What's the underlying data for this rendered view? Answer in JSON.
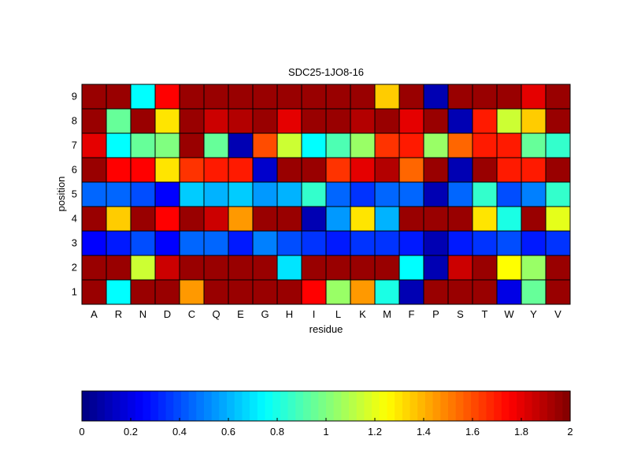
{
  "chart_data": {
    "type": "heatmap",
    "title": "SDC25-1JO8-16",
    "xlabel": "residue",
    "ylabel": "position",
    "x_categories": [
      "A",
      "R",
      "N",
      "D",
      "C",
      "Q",
      "E",
      "G",
      "H",
      "I",
      "L",
      "K",
      "M",
      "F",
      "P",
      "S",
      "T",
      "W",
      "Y",
      "V"
    ],
    "y_categories": [
      "1",
      "2",
      "3",
      "4",
      "5",
      "6",
      "7",
      "8",
      "9"
    ],
    "values": [
      [
        1.95,
        0.75,
        1.95,
        1.95,
        1.45,
        1.95,
        1.95,
        1.95,
        1.95,
        1.75,
        1.05,
        1.45,
        0.8,
        0.1,
        1.95,
        1.95,
        1.95,
        0.2,
        0.95,
        1.95
      ],
      [
        1.95,
        1.95,
        1.15,
        1.85,
        1.95,
        1.95,
        1.95,
        1.95,
        0.7,
        1.95,
        1.95,
        1.95,
        1.95,
        0.75,
        0.1,
        1.85,
        1.95,
        1.25,
        1.05,
        1.95
      ],
      [
        0.25,
        0.3,
        0.4,
        0.25,
        0.45,
        0.45,
        0.3,
        0.5,
        0.4,
        0.35,
        0.3,
        0.35,
        0.35,
        0.3,
        0.1,
        0.3,
        0.35,
        0.4,
        0.3,
        0.35
      ],
      [
        1.95,
        1.35,
        1.95,
        1.75,
        1.95,
        1.85,
        1.45,
        1.95,
        1.95,
        0.1,
        0.55,
        1.3,
        0.6,
        1.95,
        1.95,
        1.95,
        1.3,
        0.8,
        1.95,
        1.2
      ],
      [
        0.45,
        0.45,
        0.4,
        0.25,
        0.65,
        0.6,
        0.65,
        0.55,
        0.6,
        0.85,
        0.45,
        0.35,
        0.45,
        0.45,
        0.1,
        0.45,
        0.85,
        0.4,
        0.5,
        0.85
      ],
      [
        1.95,
        1.75,
        1.75,
        1.3,
        1.65,
        1.7,
        1.7,
        0.15,
        1.95,
        1.95,
        1.65,
        1.8,
        1.9,
        1.55,
        1.95,
        0.1,
        1.95,
        1.7,
        1.7,
        1.95
      ],
      [
        1.8,
        0.75,
        0.95,
        1.0,
        1.95,
        0.95,
        0.1,
        1.6,
        1.15,
        0.75,
        0.9,
        1.05,
        1.65,
        1.7,
        1.05,
        1.55,
        1.7,
        1.7,
        0.95,
        0.85
      ],
      [
        1.95,
        0.95,
        1.95,
        1.3,
        1.95,
        1.85,
        1.9,
        1.95,
        1.8,
        1.95,
        1.95,
        1.9,
        1.95,
        1.8,
        1.95,
        0.1,
        1.7,
        1.15,
        1.35,
        1.95
      ],
      [
        1.95,
        1.95,
        0.75,
        1.75,
        1.95,
        1.95,
        1.95,
        1.95,
        1.95,
        1.95,
        1.95,
        1.95,
        1.35,
        1.95,
        0.1,
        1.95,
        1.95,
        1.95,
        1.8,
        1.95
      ]
    ],
    "color_scale": {
      "colormap": "jet",
      "range": [
        0,
        2
      ],
      "ticks": [
        "0",
        "0.2",
        "0.4",
        "0.6",
        "0.8",
        "1",
        "1.2",
        "1.4",
        "1.6",
        "1.8",
        "2"
      ]
    },
    "grid": true,
    "colorbar_placement": "bottom"
  }
}
